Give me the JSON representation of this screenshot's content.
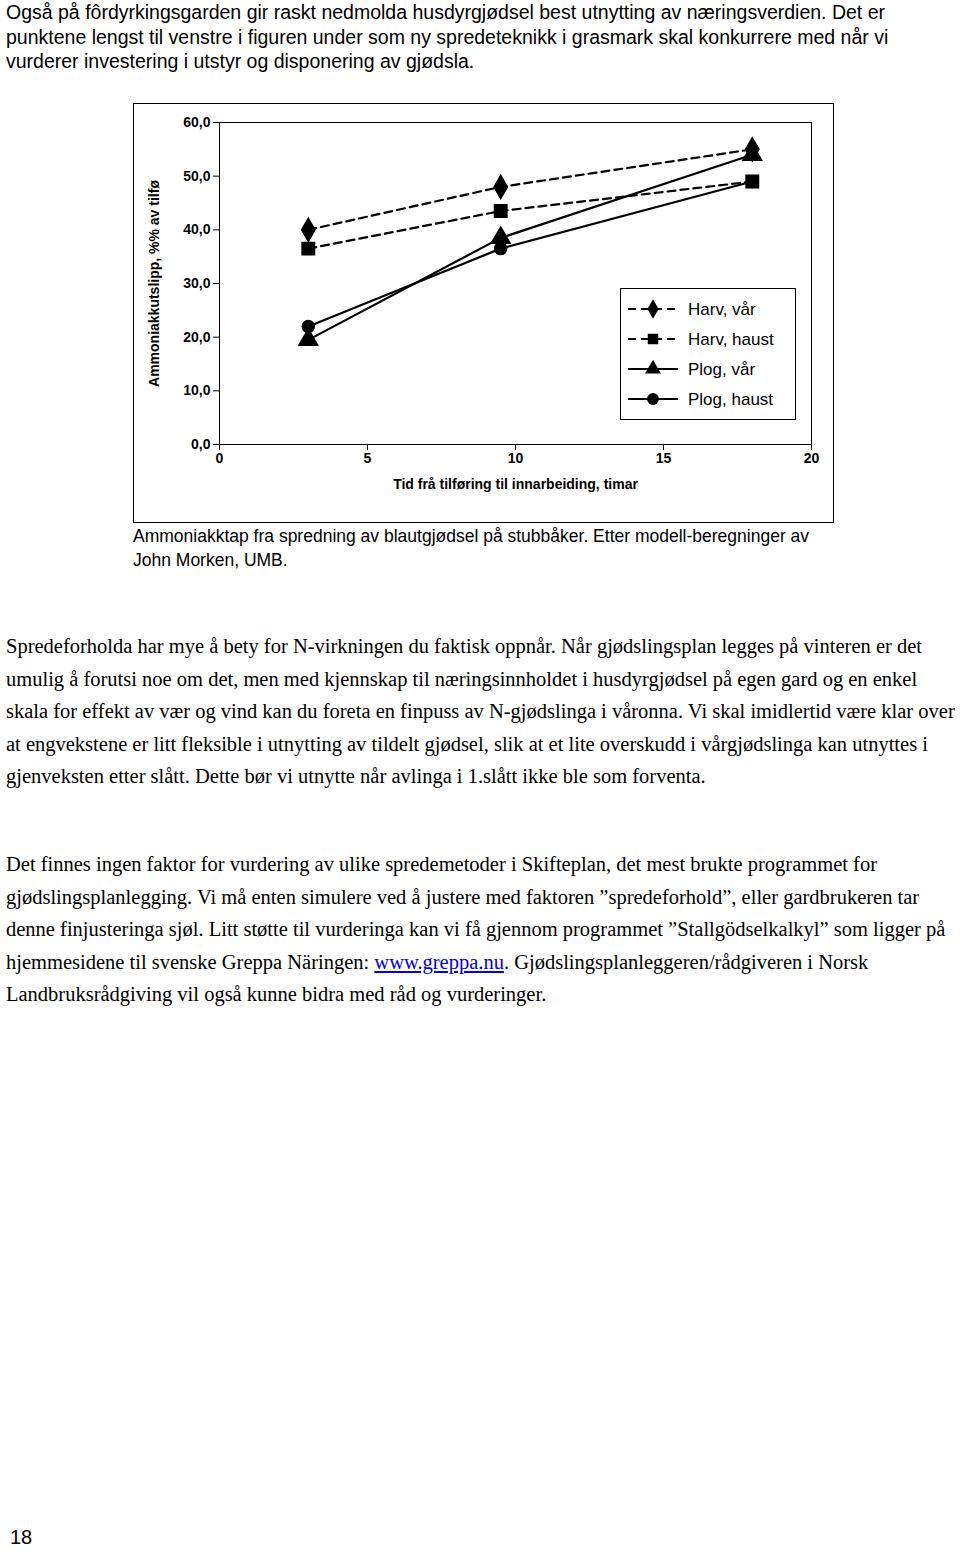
{
  "paragraph_1": "Også på fôrdyrkingsgarden gir raskt nedmolda husdyrgjødsel best utnytting av næringsverdien. Det er punktene lengst til venstre i figuren under som ny spredeteknikk i grasmark skal konkurrere med når vi vurderer investering i utstyr og disponering av gjødsla.",
  "chart_data": {
    "type": "line",
    "x_label": "Tid frå tilføring til innarbeiding, timar",
    "y_label": "Ammoniakkutslipp, %% av tilfø",
    "xlim": [
      0,
      20
    ],
    "xticks": [
      0,
      5,
      10,
      15,
      20
    ],
    "ylim": [
      0,
      60
    ],
    "yticks": [
      {
        "value": 0,
        "label": "0,0"
      },
      {
        "value": 10,
        "label": "10,0"
      },
      {
        "value": 20,
        "label": "20,0"
      },
      {
        "value": 30,
        "label": "30,0"
      },
      {
        "value": 40,
        "label": "40,0"
      },
      {
        "value": 50,
        "label": "50,0"
      },
      {
        "value": 60,
        "label": "60,0"
      }
    ],
    "grid": false,
    "legend": "lower right",
    "x": [
      3,
      9.5,
      18
    ],
    "series": [
      {
        "name": "Harv, vår",
        "color": "#000000",
        "marker": "diamond",
        "line_style": "dashed",
        "values": [
          40,
          48,
          55
        ]
      },
      {
        "name": "Harv, haust",
        "color": "#000000",
        "marker": "square",
        "line_style": "dashed",
        "values": [
          36.5,
          43.5,
          49
        ]
      },
      {
        "name": "Plog, vår",
        "color": "#000000",
        "marker": "triangle",
        "line_style": "solid",
        "values": [
          19.5,
          38.5,
          54
        ]
      },
      {
        "name": "Plog, haust",
        "color": "#000000",
        "marker": "circle",
        "line_style": "solid",
        "values": [
          22,
          36.5,
          49
        ]
      }
    ]
  },
  "figure_caption": "Ammoniakktap fra spredning av blautgjødsel på stubbåker. Etter modell-beregninger av John Morken, UMB.",
  "paragraph_2": "Spredeforholda har mye å bety for N-virkningen du faktisk oppnår. Når gjødslingsplan legges på vinteren er det umulig å forutsi noe om det, men med kjennskap til næringsinnholdet i husdyrgjødsel på egen gard og en enkel skala for effekt av vær og vind kan du foreta en finpuss av N-gjødslinga i våronna. Vi skal imidlertid være klar over at engvekstene er litt fleksible i utnytting av tildelt gjødsel, slik at et lite overskudd i vårgjødslinga kan utnyttes i gjenveksten etter slått. Dette bør vi utnytte når avlinga i 1.slått ikke ble som forventa.",
  "paragraph_3": {
    "text_before": "Det finnes ingen faktor for vurdering av ulike spredemetoder i Skifteplan, det mest brukte programmet for gjødslingsplanlegging. Vi må enten simulere ved å justere med faktoren ”spredeforhold”, eller gardbrukeren tar denne finjusteringa sjøl. Litt støtte til vurderinga kan vi få gjennom programmet ”Stallgödselkalkyl” som ligger på hjemmesidene til svenske Greppa Näringen: ",
    "link": "www.greppa.nu",
    "text_after": ". Gjødslingsplanleggeren/rådgiveren i Norsk Landbruksrådgiving vil også kunne bidra med råd og vurderinger."
  },
  "page_number": 18
}
